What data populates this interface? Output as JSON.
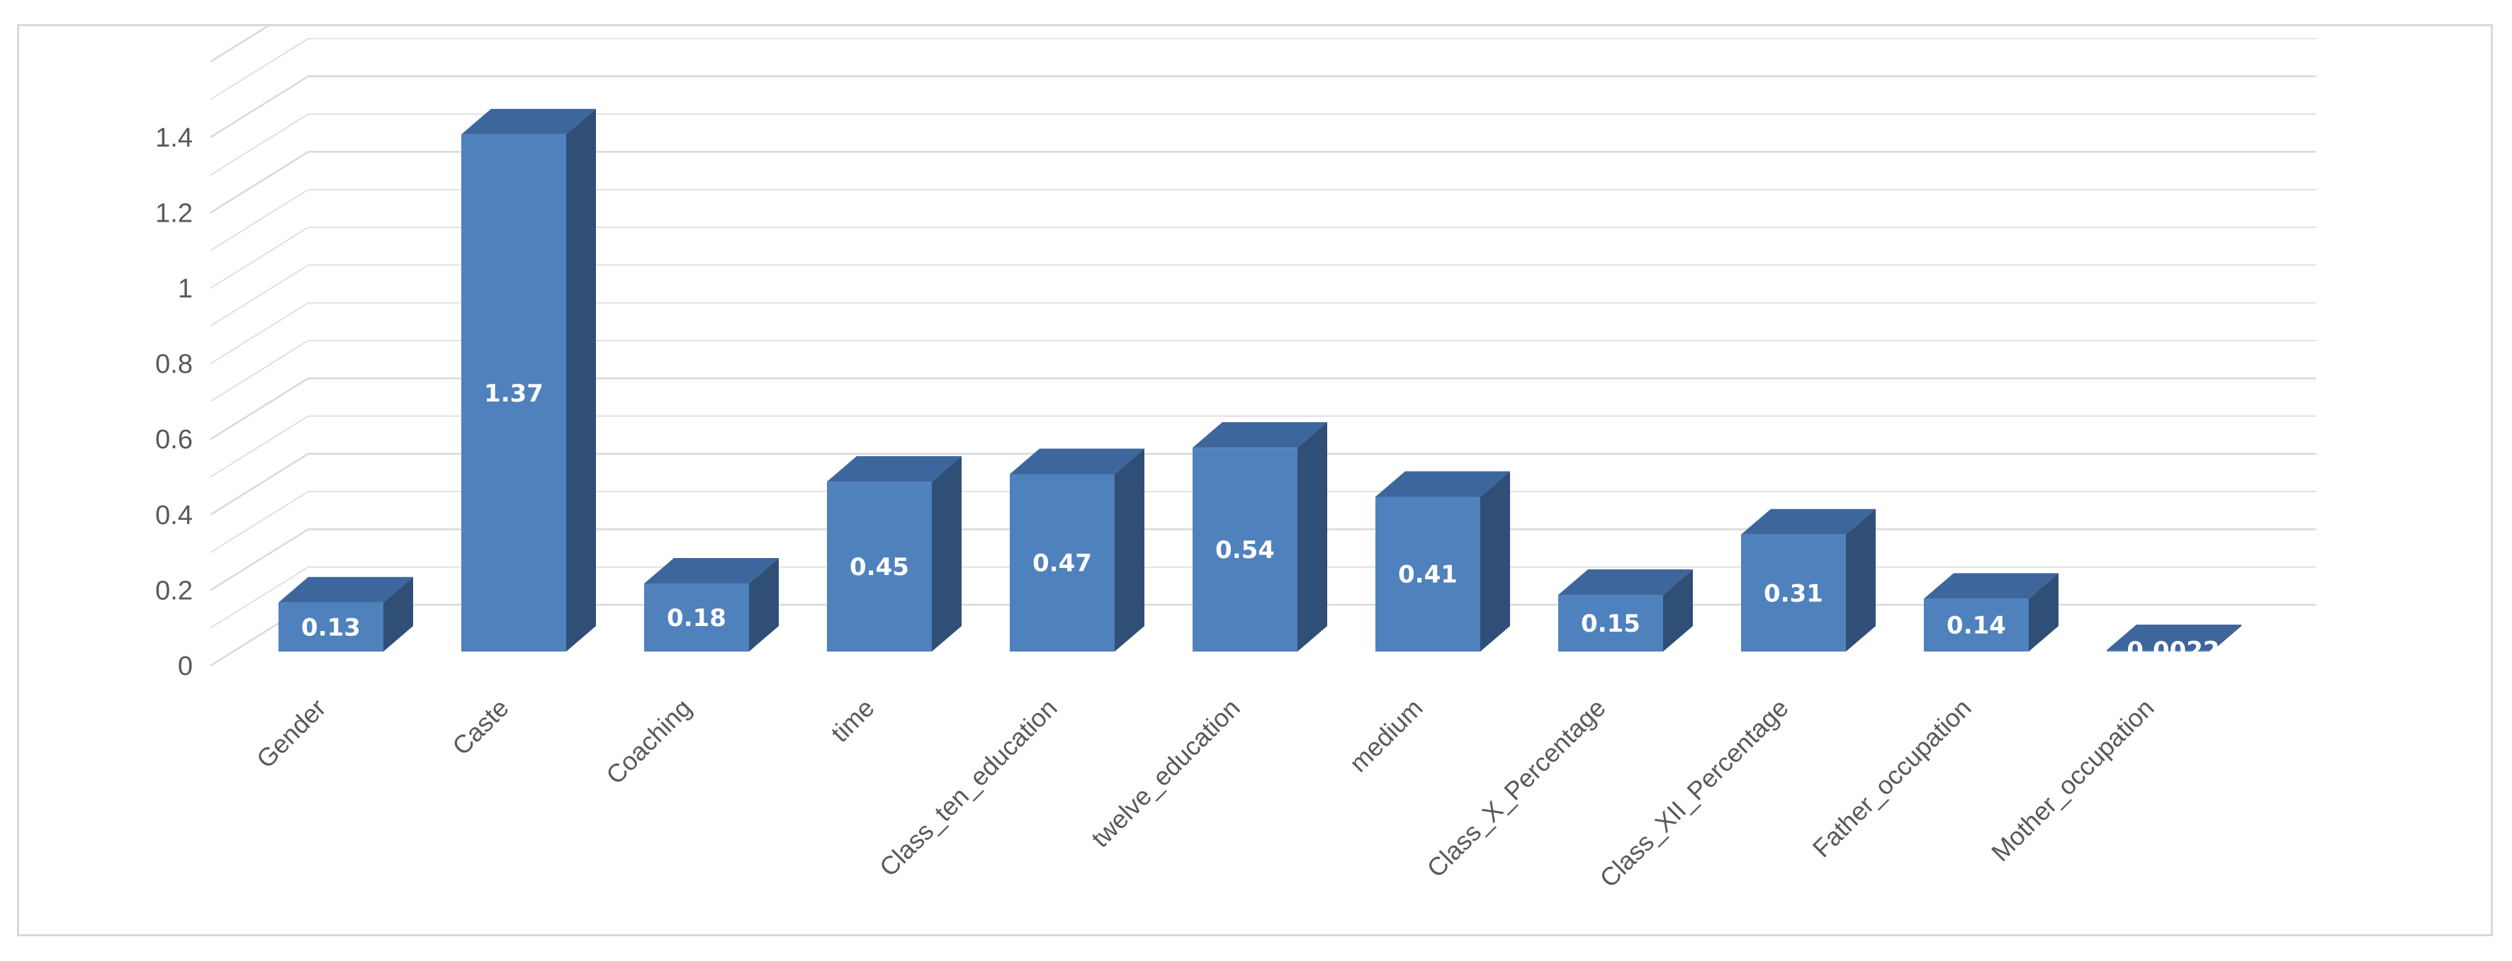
{
  "chart_data": {
    "type": "bar",
    "style": "3d-column",
    "title": "",
    "xlabel": "",
    "ylabel": "",
    "categories": [
      "Gender",
      "Caste",
      "Coaching",
      "time",
      "Class_ten_education",
      "twelve_education",
      "medium",
      "Class_X_Percentage",
      "Class_XII_Percentage",
      "Father_occupation",
      "Mother_occupation"
    ],
    "values": [
      0.13,
      1.37,
      0.18,
      0.45,
      0.47,
      0.54,
      0.41,
      0.15,
      0.31,
      0.14,
      0.0022
    ],
    "data_labels": [
      "0.13",
      "1.37",
      "0.18",
      "0.45",
      "0.47",
      "0.54",
      "0.41",
      "0.15",
      "0.31",
      "0.14",
      "0.0022"
    ],
    "yticks": [
      "0",
      "0.2",
      "0.4",
      "0.6",
      "0.8",
      "1",
      "1.2",
      "1.4"
    ],
    "ylim": [
      0,
      1.6
    ],
    "grid": true,
    "legend": "none",
    "colors": {
      "bar_front": "#4f81bd",
      "bar_side": "#2f4f77",
      "bar_top": "#3d669c",
      "grid": "#d9d9d9",
      "axis_text": "#595959",
      "border": "#d9d9d9"
    }
  }
}
